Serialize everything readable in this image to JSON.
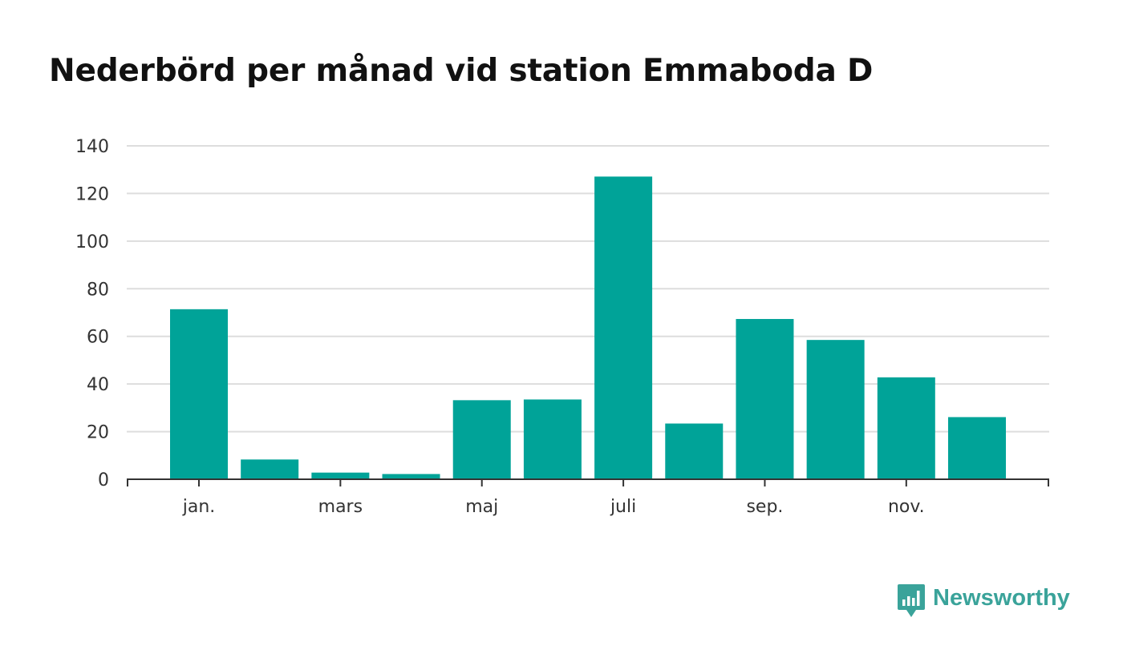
{
  "title": "Nederbörd per månad vid station Emmaboda D",
  "brand": {
    "name": "Newsworthy",
    "icon": "newsworthy-logo-icon",
    "color": "#3aa39a"
  },
  "colors": {
    "bar": "#00a398",
    "grid": "#dddddd",
    "axis": "#333333"
  },
  "chart_data": {
    "type": "bar",
    "title": "Nederbörd per månad vid station Emmaboda D",
    "xlabel": "",
    "ylabel": "",
    "categories": [
      "jan.",
      "feb.",
      "mars",
      "apr.",
      "maj",
      "juni",
      "juli",
      "aug.",
      "sep.",
      "okt.",
      "nov.",
      "dec."
    ],
    "visible_tick_labels": [
      "jan.",
      "",
      "mars",
      "",
      "maj",
      "",
      "juli",
      "",
      "sep.",
      "",
      "nov.",
      ""
    ],
    "values": [
      71.4,
      8.3,
      2.8,
      2.2,
      33.2,
      33.5,
      127.1,
      23.4,
      67.3,
      58.5,
      42.8,
      26.1
    ],
    "ylim": [
      0,
      140
    ],
    "yticks": [
      0,
      20,
      40,
      60,
      80,
      100,
      120,
      140
    ],
    "grid": true,
    "legend": "none"
  }
}
